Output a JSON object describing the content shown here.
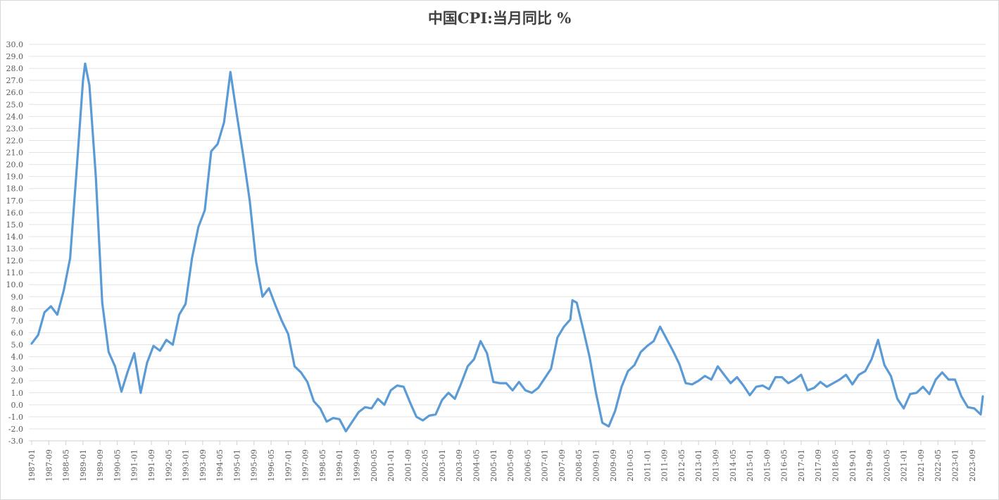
{
  "chart_data": {
    "type": "line",
    "title": "中国CPI:当月同比 %",
    "xlabel": "",
    "ylabel": "",
    "ylim": [
      -3.0,
      30.0
    ],
    "ytick_step": 1.0,
    "ytick_labels": [
      "30.0",
      "29.0",
      "28.0",
      "27.0",
      "26.0",
      "25.0",
      "24.0",
      "23.0",
      "22.0",
      "21.0",
      "20.0",
      "19.0",
      "18.0",
      "17.0",
      "16.0",
      "15.0",
      "14.0",
      "13.0",
      "12.0",
      "11.0",
      "10.0",
      "9.0",
      "8.0",
      "7.0",
      "6.0",
      "5.0",
      "4.0",
      "3.0",
      "2.0",
      "1.0",
      "0.0",
      "-1.0",
      "-2.0",
      "-3.0"
    ],
    "xtick_labels": [
      "1987-01",
      "1987-09",
      "1988-05",
      "1989-01",
      "1989-09",
      "1990-05",
      "1991-01",
      "1991-09",
      "1992-05",
      "1993-01",
      "1993-09",
      "1994-05",
      "1995-01",
      "1995-09",
      "1996-05",
      "1997-01",
      "1997-09",
      "1998-05",
      "1999-01",
      "1999-09",
      "2000-05",
      "2001-01",
      "2001-09",
      "2002-05",
      "2003-01",
      "2003-09",
      "2004-05",
      "2005-01",
      "2005-09",
      "2006-05",
      "2007-01",
      "2007-09",
      "2008-05",
      "2009-01",
      "2009-09",
      "2010-05",
      "2011-01",
      "2011-09",
      "2012-05",
      "2013-01",
      "2013-09",
      "2014-05",
      "2015-01",
      "2015-09",
      "2016-05",
      "2017-01",
      "2017-09",
      "2018-05",
      "2019-01",
      "2019-09",
      "2020-05",
      "2021-01",
      "2021-09",
      "2022-05",
      "2023-01",
      "2023-09"
    ],
    "grid": true,
    "legend": "none",
    "line_color": "#5B9BD5",
    "series": [
      {
        "name": "中国CPI:当月同比",
        "x_start": "1987-01",
        "x_end": "2024-02",
        "x": [
          "1987-01",
          "1987-04",
          "1987-07",
          "1987-10",
          "1988-01",
          "1988-04",
          "1988-07",
          "1988-10",
          "1989-01",
          "1989-02",
          "1989-04",
          "1989-07",
          "1989-10",
          "1990-01",
          "1990-04",
          "1990-07",
          "1990-10",
          "1991-01",
          "1991-04",
          "1991-07",
          "1991-10",
          "1992-01",
          "1992-04",
          "1992-07",
          "1992-10",
          "1993-01",
          "1993-04",
          "1993-07",
          "1993-10",
          "1994-01",
          "1994-04",
          "1994-07",
          "1994-10",
          "1995-01",
          "1995-04",
          "1995-07",
          "1995-10",
          "1996-01",
          "1996-04",
          "1996-07",
          "1996-10",
          "1997-01",
          "1997-04",
          "1997-07",
          "1997-10",
          "1998-01",
          "1998-04",
          "1998-07",
          "1998-10",
          "1999-01",
          "1999-04",
          "1999-07",
          "1999-10",
          "2000-01",
          "2000-04",
          "2000-07",
          "2000-10",
          "2001-01",
          "2001-04",
          "2001-07",
          "2001-10",
          "2002-01",
          "2002-04",
          "2002-07",
          "2002-10",
          "2003-01",
          "2003-04",
          "2003-07",
          "2003-10",
          "2004-01",
          "2004-04",
          "2004-07",
          "2004-10",
          "2005-01",
          "2005-04",
          "2005-07",
          "2005-10",
          "2006-01",
          "2006-04",
          "2006-07",
          "2006-10",
          "2007-01",
          "2007-04",
          "2007-07",
          "2007-10",
          "2008-01",
          "2008-02",
          "2008-04",
          "2008-07",
          "2008-10",
          "2009-01",
          "2009-04",
          "2009-07",
          "2009-10",
          "2010-01",
          "2010-04",
          "2010-07",
          "2010-10",
          "2011-01",
          "2011-04",
          "2011-07",
          "2011-10",
          "2012-01",
          "2012-04",
          "2012-07",
          "2012-10",
          "2013-01",
          "2013-04",
          "2013-07",
          "2013-10",
          "2014-01",
          "2014-04",
          "2014-07",
          "2014-10",
          "2015-01",
          "2015-04",
          "2015-07",
          "2015-10",
          "2016-01",
          "2016-04",
          "2016-07",
          "2016-10",
          "2017-01",
          "2017-04",
          "2017-07",
          "2017-10",
          "2018-01",
          "2018-04",
          "2018-07",
          "2018-10",
          "2019-01",
          "2019-04",
          "2019-07",
          "2019-10",
          "2020-01",
          "2020-04",
          "2020-07",
          "2020-10",
          "2021-01",
          "2021-04",
          "2021-07",
          "2021-10",
          "2022-01",
          "2022-04",
          "2022-07",
          "2022-10",
          "2023-01",
          "2023-04",
          "2023-07",
          "2023-10",
          "2024-01",
          "2024-02"
        ],
        "values": [
          5.1,
          5.8,
          7.7,
          8.2,
          7.5,
          9.5,
          12.2,
          19.5,
          27.0,
          28.4,
          26.6,
          19.0,
          8.5,
          4.4,
          3.2,
          1.1,
          2.8,
          4.3,
          1.0,
          3.5,
          4.9,
          4.5,
          5.4,
          5.0,
          7.5,
          8.4,
          12.2,
          14.8,
          16.2,
          21.1,
          21.7,
          23.5,
          27.7,
          24.1,
          20.7,
          17.0,
          11.9,
          9.0,
          9.7,
          8.3,
          7.0,
          5.9,
          3.2,
          2.7,
          1.9,
          0.3,
          -0.3,
          -1.4,
          -1.1,
          -1.2,
          -2.2,
          -1.4,
          -0.6,
          -0.2,
          -0.3,
          0.5,
          0.0,
          1.2,
          1.6,
          1.5,
          0.2,
          -1.0,
          -1.3,
          -0.9,
          -0.8,
          0.4,
          1.0,
          0.5,
          1.8,
          3.2,
          3.8,
          5.3,
          4.3,
          1.9,
          1.8,
          1.8,
          1.2,
          1.9,
          1.2,
          1.0,
          1.4,
          2.2,
          3.0,
          5.6,
          6.5,
          7.1,
          8.7,
          8.5,
          6.3,
          4.0,
          1.0,
          -1.5,
          -1.8,
          -0.5,
          1.5,
          2.8,
          3.3,
          4.4,
          4.9,
          5.3,
          6.5,
          5.5,
          4.5,
          3.4,
          1.8,
          1.7,
          2.0,
          2.4,
          2.1,
          3.2,
          2.5,
          1.8,
          2.3,
          1.6,
          0.8,
          1.5,
          1.6,
          1.3,
          2.3,
          2.3,
          1.8,
          2.1,
          2.5,
          1.2,
          1.4,
          1.9,
          1.5,
          1.8,
          2.1,
          2.5,
          1.7,
          2.5,
          2.8,
          3.8,
          5.4,
          3.3,
          2.4,
          0.5,
          -0.3,
          0.9,
          1.0,
          1.5,
          0.9,
          2.1,
          2.7,
          2.1,
          2.1,
          0.7,
          -0.2,
          -0.3,
          -0.8,
          0.7
        ]
      }
    ]
  }
}
